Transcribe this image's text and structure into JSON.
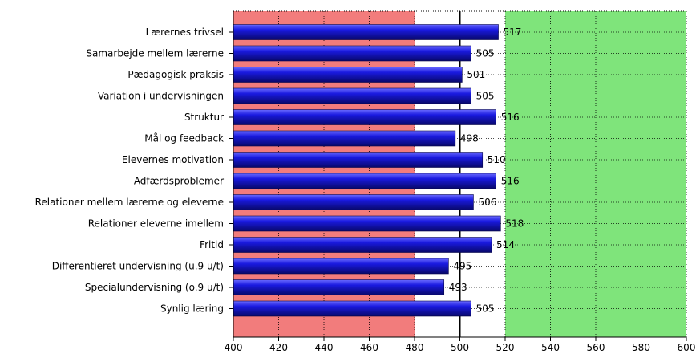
{
  "chart_data": {
    "type": "bar",
    "orientation": "horizontal",
    "categories": [
      "Lærernes trivsel",
      "Samarbejde mellem lærerne",
      "Pædagogisk praksis",
      "Variation i undervisningen",
      "Struktur",
      "Mål og feedback",
      "Elevernes motivation",
      "Adfærdsproblemer",
      "Relationer mellem lærerne og eleverne",
      "Relationer eleverne imellem",
      "Fritid",
      "Differentieret undervisning (u.9 u/t)",
      "Specialundervisning (o.9 u/t)",
      "Synlig læring"
    ],
    "values": [
      517,
      505,
      501,
      505,
      516,
      498,
      510,
      516,
      506,
      518,
      514,
      495,
      493,
      505
    ],
    "value_labels": [
      "517",
      "505",
      "501",
      "505",
      "516",
      "498",
      "510",
      "516",
      "506",
      "518",
      "514",
      "495",
      "493",
      "505"
    ],
    "xlim": [
      400,
      600
    ],
    "xticks": [
      400,
      420,
      440,
      460,
      480,
      500,
      520,
      540,
      560,
      580,
      600
    ],
    "xtick_labels": [
      "400",
      "420",
      "440",
      "460",
      "480",
      "500",
      "520",
      "540",
      "560",
      "580",
      "600"
    ],
    "reference_line": 500,
    "bands": [
      {
        "from": 400,
        "to": 480,
        "color": "#f27c7c"
      },
      {
        "from": 520,
        "to": 600,
        "color": "#7fe47b"
      }
    ],
    "bar_color": "#1a1ad8",
    "grid": "dotted-vertical"
  }
}
